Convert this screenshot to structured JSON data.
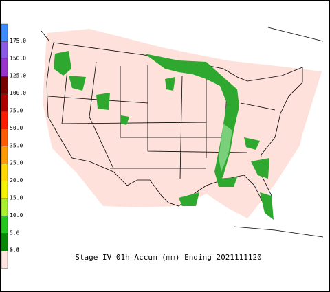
{
  "legend": {
    "items": [
      {
        "label": "175.0",
        "color": "#3a8cff"
      },
      {
        "label": "150.0",
        "color": "#8a5ae6"
      },
      {
        "label": "125.0",
        "color": "#9a32cd"
      },
      {
        "label": "100.0",
        "color": "#7a0000"
      },
      {
        "label": "75.0",
        "color": "#b00000"
      },
      {
        "label": "50.0",
        "color": "#ff1a00"
      },
      {
        "label": "35.0",
        "color": "#ff5a00"
      },
      {
        "label": "25.0",
        "color": "#ff9a00"
      },
      {
        "label": "20.0",
        "color": "#ffd800"
      },
      {
        "label": "15.0",
        "color": "#f4f400"
      },
      {
        "label": "10.0",
        "color": "#a8f02a"
      },
      {
        "label": "5.0",
        "color": "#22c81e"
      },
      {
        "label": "2.0",
        "color": "#068a06"
      },
      {
        "label": "0.1",
        "color": "#ffe4df"
      }
    ]
  },
  "caption": "Stage IV 01h Accum (mm) Ending 2021111120"
}
